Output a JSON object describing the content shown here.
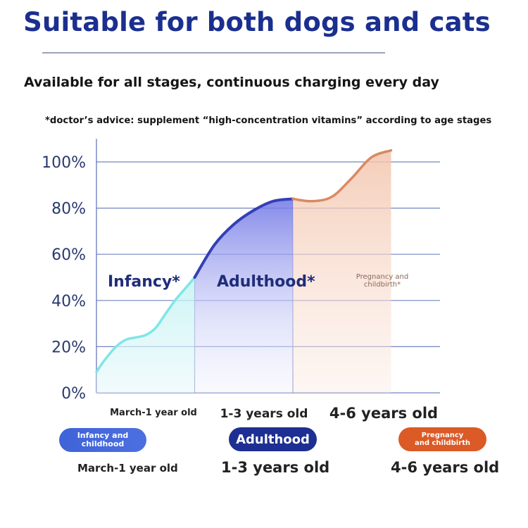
{
  "header": {
    "title": "Suitable for both dogs and cats",
    "subtitle": "Available for all stages, continuous charging every day",
    "note": "*doctor’s advice: supplement “high-concentration vitamins” according to age stages"
  },
  "chart_data": {
    "type": "area",
    "ylim": [
      0,
      110
    ],
    "yticks": [
      "0%",
      "20%",
      "40%",
      "60%",
      "80%",
      "100%"
    ],
    "grid": true,
    "xlabel": "",
    "ylabel": "",
    "stages": [
      {
        "label": "Infancy*",
        "x_label": "March-1 year old"
      },
      {
        "label": "Adulthood*",
        "x_label": "1-3 years old"
      },
      {
        "label": "Pregnancy and\nchildbirth*",
        "x_label": "4-6 years old"
      }
    ],
    "series": [
      {
        "x": [
          0,
          0.08,
          0.2,
          0.3,
          0.4,
          0.5,
          0.6,
          0.7,
          0.8,
          0.9,
          1.0
        ],
        "values": [
          9,
          14,
          20,
          23,
          24,
          25,
          28,
          34,
          40,
          45,
          50
        ],
        "color": "#7ee6e6"
      },
      {
        "x": [
          1.0,
          1.2,
          1.4,
          1.6,
          1.8,
          2.0
        ],
        "values": [
          50,
          64,
          73,
          79,
          83,
          84
        ],
        "color": "#3340b5"
      },
      {
        "x": [
          2.0,
          2.2,
          2.4,
          2.6,
          2.8,
          3.0
        ],
        "values": [
          84,
          83,
          85,
          93,
          102,
          105
        ],
        "color": "#d88a64"
      }
    ],
    "colors": {
      "infancy": "#7ee6e6",
      "adulthood": "#3340b5",
      "pregnancy": "#d88a64",
      "grid": "#5b6fb6",
      "tick_text": "#2b3a6e"
    }
  },
  "legend": {
    "pills": [
      "Infancy and\nchildhood",
      "Adulthood",
      "Pregnancy\nand childbirth"
    ],
    "ages": [
      "March-1 year old",
      "1-3 years old",
      "4-6 years old"
    ]
  }
}
